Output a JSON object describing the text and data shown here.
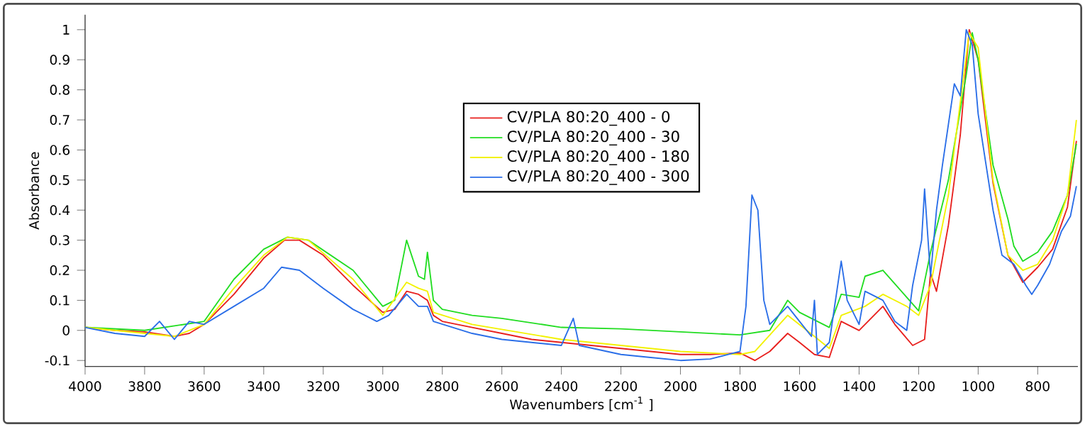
{
  "chart_data": {
    "type": "line",
    "xlabel": "Wavenumbers [cm$^{-1}$ ]",
    "ylabel": "Absorbance",
    "xlim": [
      4000,
      665
    ],
    "ylim": [
      -0.12,
      1.05
    ],
    "xticks": [
      4000,
      3800,
      3600,
      3400,
      3200,
      3000,
      2800,
      2600,
      2400,
      2200,
      2000,
      1800,
      1600,
      1400,
      1200,
      1000,
      800
    ],
    "yticks": [
      -0.1,
      0,
      0.1,
      0.2,
      0.3,
      0.4,
      0.5,
      0.6,
      0.7,
      0.8,
      0.9,
      1
    ],
    "grid": false,
    "legend": "top",
    "marker": "none",
    "line_style": "solid",
    "series": [
      {
        "name": "CV/PLA 80:20_400 - 0",
        "color": "#e8201e",
        "x": [
          4000,
          3900,
          3800,
          3700,
          3650,
          3600,
          3500,
          3400,
          3330,
          3280,
          3200,
          3100,
          3000,
          2960,
          2920,
          2880,
          2850,
          2830,
          2800,
          2700,
          2600,
          2500,
          2400,
          2300,
          2200,
          2100,
          2000,
          1900,
          1800,
          1750,
          1700,
          1640,
          1600,
          1550,
          1500,
          1460,
          1400,
          1320,
          1280,
          1220,
          1180,
          1160,
          1140,
          1100,
          1060,
          1030,
          1000,
          950,
          900,
          850,
          800,
          750,
          700,
          670
        ],
        "values": [
          0.01,
          0.0,
          -0.005,
          -0.02,
          -0.01,
          0.02,
          0.12,
          0.24,
          0.3,
          0.3,
          0.25,
          0.15,
          0.06,
          0.07,
          0.13,
          0.12,
          0.1,
          0.05,
          0.03,
          0.01,
          -0.01,
          -0.03,
          -0.04,
          -0.05,
          -0.06,
          -0.07,
          -0.08,
          -0.08,
          -0.075,
          -0.1,
          -0.07,
          -0.01,
          -0.04,
          -0.08,
          -0.09,
          0.03,
          0.0,
          0.08,
          0.02,
          -0.05,
          -0.03,
          0.19,
          0.13,
          0.35,
          0.65,
          1.0,
          0.9,
          0.49,
          0.25,
          0.16,
          0.21,
          0.27,
          0.41,
          0.63
        ]
      },
      {
        "name": "CV/PLA 80:20_400 - 30",
        "color": "#22dd22",
        "x": [
          4000,
          3800,
          3600,
          3500,
          3400,
          3320,
          3250,
          3100,
          3000,
          2960,
          2920,
          2880,
          2860,
          2850,
          2830,
          2800,
          2700,
          2600,
          2400,
          2200,
          2000,
          1800,
          1700,
          1640,
          1600,
          1500,
          1460,
          1400,
          1380,
          1320,
          1240,
          1200,
          1160,
          1100,
          1040,
          1020,
          1000,
          950,
          900,
          880,
          850,
          800,
          750,
          700,
          670
        ],
        "values": [
          0.01,
          0.0,
          0.03,
          0.17,
          0.27,
          0.31,
          0.3,
          0.2,
          0.08,
          0.1,
          0.3,
          0.18,
          0.17,
          0.26,
          0.1,
          0.07,
          0.05,
          0.04,
          0.01,
          0.005,
          -0.005,
          -0.015,
          0.0,
          0.1,
          0.06,
          0.01,
          0.12,
          0.11,
          0.18,
          0.2,
          0.11,
          0.065,
          0.26,
          0.5,
          0.85,
          0.99,
          0.9,
          0.55,
          0.37,
          0.28,
          0.23,
          0.26,
          0.33,
          0.45,
          0.62
        ]
      },
      {
        "name": "CV/PLA 80:20_400 - 180",
        "color": "#f2f200",
        "x": [
          4000,
          3800,
          3700,
          3600,
          3500,
          3400,
          3320,
          3250,
          3100,
          3000,
          2920,
          2880,
          2850,
          2830,
          2700,
          2400,
          2200,
          2000,
          1800,
          1750,
          1640,
          1550,
          1500,
          1460,
          1380,
          1320,
          1240,
          1200,
          1160,
          1100,
          1030,
          1000,
          950,
          900,
          850,
          800,
          750,
          700,
          670
        ],
        "values": [
          0.01,
          -0.01,
          -0.02,
          0.02,
          0.14,
          0.25,
          0.31,
          0.3,
          0.17,
          0.05,
          0.16,
          0.14,
          0.13,
          0.06,
          0.02,
          -0.03,
          -0.05,
          -0.07,
          -0.08,
          -0.07,
          0.05,
          -0.02,
          -0.06,
          0.05,
          0.08,
          0.12,
          0.08,
          0.05,
          0.15,
          0.45,
          0.99,
          0.94,
          0.5,
          0.25,
          0.2,
          0.22,
          0.3,
          0.45,
          0.7
        ]
      },
      {
        "name": "CV/PLA 80:20_400 - 300",
        "color": "#2a6ee8",
        "x": [
          4000,
          3900,
          3800,
          3750,
          3700,
          3650,
          3600,
          3500,
          3400,
          3340,
          3280,
          3200,
          3100,
          3020,
          2980,
          2920,
          2880,
          2850,
          2830,
          2700,
          2600,
          2400,
          2360,
          2340,
          2200,
          2100,
          2000,
          1900,
          1800,
          1780,
          1760,
          1740,
          1720,
          1700,
          1640,
          1600,
          1560,
          1550,
          1540,
          1500,
          1460,
          1440,
          1400,
          1380,
          1320,
          1280,
          1240,
          1220,
          1190,
          1180,
          1160,
          1140,
          1120,
          1080,
          1060,
          1040,
          1020,
          1000,
          950,
          920,
          880,
          840,
          820,
          800,
          760,
          720,
          690,
          670
        ],
        "values": [
          0.01,
          -0.01,
          -0.02,
          0.03,
          -0.03,
          0.03,
          0.02,
          0.08,
          0.14,
          0.21,
          0.2,
          0.14,
          0.07,
          0.03,
          0.05,
          0.12,
          0.08,
          0.08,
          0.03,
          -0.01,
          -0.03,
          -0.05,
          0.04,
          -0.05,
          -0.08,
          -0.09,
          -0.1,
          -0.095,
          -0.07,
          0.08,
          0.45,
          0.4,
          0.1,
          0.02,
          0.08,
          0.03,
          -0.02,
          0.1,
          -0.08,
          -0.04,
          0.23,
          0.1,
          0.02,
          0.13,
          0.1,
          0.03,
          0.0,
          0.15,
          0.3,
          0.47,
          0.18,
          0.4,
          0.55,
          0.82,
          0.78,
          1.0,
          0.95,
          0.72,
          0.4,
          0.25,
          0.22,
          0.15,
          0.12,
          0.15,
          0.22,
          0.33,
          0.38,
          0.48
        ]
      }
    ]
  }
}
